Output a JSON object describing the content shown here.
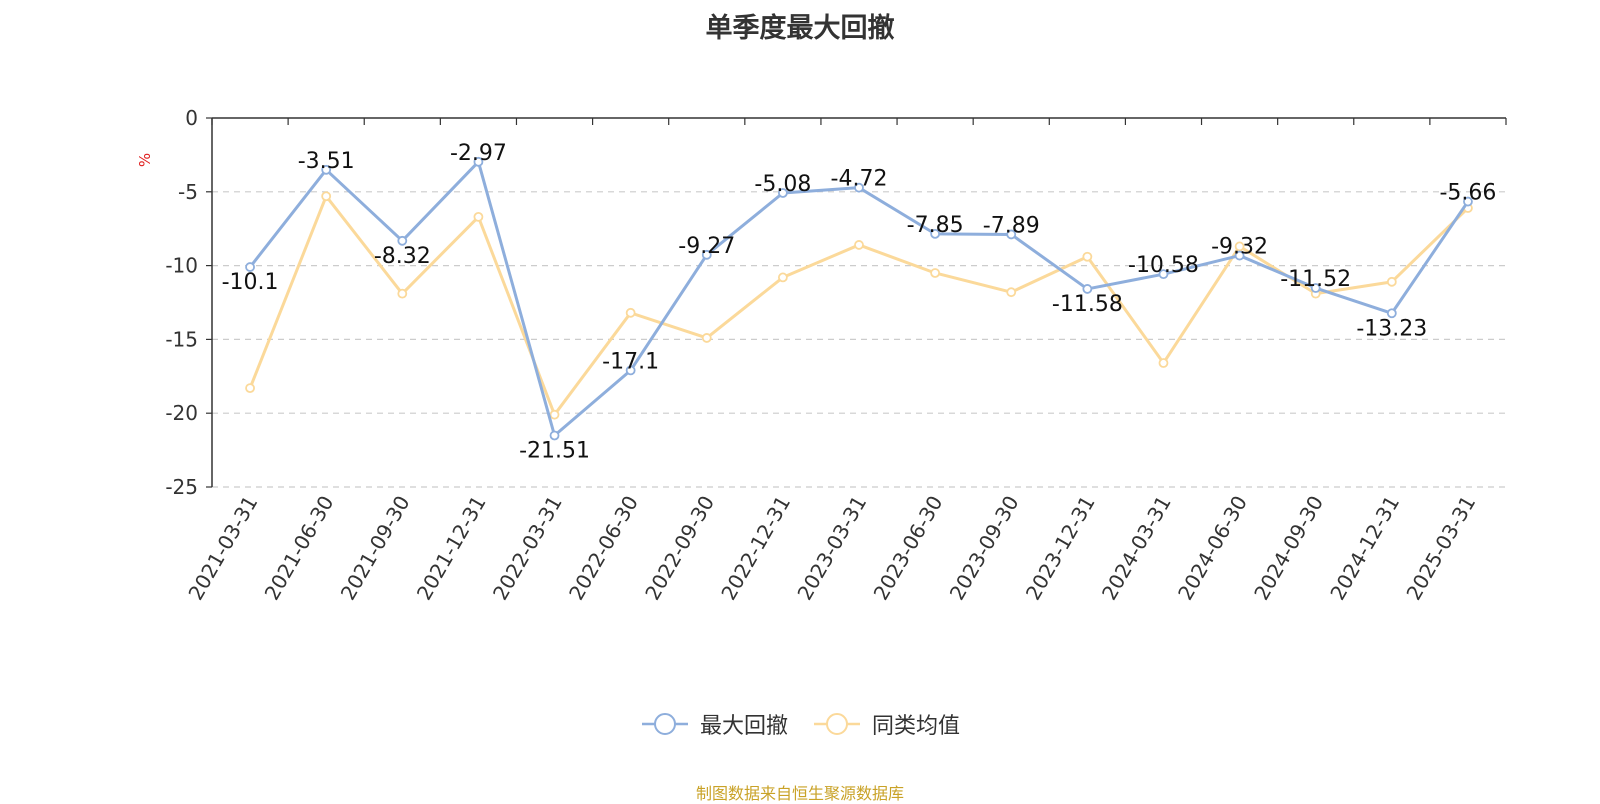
{
  "chart_data": {
    "type": "line",
    "title": "单季度最大回撤",
    "ylabel": "%",
    "xlabel": "",
    "ylim": [
      -25,
      0
    ],
    "yticks": [
      0,
      -5,
      -10,
      -15,
      -20,
      -25
    ],
    "categories": [
      "2021-03-31",
      "2021-06-30",
      "2021-09-30",
      "2021-12-31",
      "2022-03-31",
      "2022-06-30",
      "2022-09-30",
      "2022-12-31",
      "2023-03-31",
      "2023-06-30",
      "2023-09-30",
      "2023-12-31",
      "2024-03-31",
      "2024-06-30",
      "2024-09-30",
      "2024-12-31",
      "2025-03-31"
    ],
    "series": [
      {
        "name": "最大回撤",
        "color": "#8eaedc",
        "values": [
          -10.1,
          -3.51,
          -8.32,
          -2.97,
          -21.51,
          -17.1,
          -9.27,
          -5.08,
          -4.72,
          -7.85,
          -7.89,
          -11.58,
          -10.58,
          -9.32,
          -11.52,
          -13.23,
          -5.66
        ],
        "labels": [
          "-10.1",
          "-3.51",
          "-8.32",
          "-2.97",
          "-21.51",
          "-17.1",
          "-9.27",
          "-5.08",
          "-4.72",
          "-7.85",
          "-7.89",
          "-11.58",
          "-10.58",
          "-9.32",
          "-11.52",
          "-13.23",
          "-5.66"
        ]
      },
      {
        "name": "同类均值",
        "color": "#fbd99a",
        "values": [
          -18.3,
          -5.3,
          -11.9,
          -6.7,
          -20.1,
          -13.2,
          -14.9,
          -10.8,
          -8.6,
          -10.5,
          -11.8,
          -9.4,
          -16.6,
          -8.7,
          -11.9,
          -11.1,
          -6.1
        ]
      }
    ],
    "grid": true,
    "legend_position": "bottom-center"
  },
  "source_note": "制图数据来自恒生聚源数据库"
}
